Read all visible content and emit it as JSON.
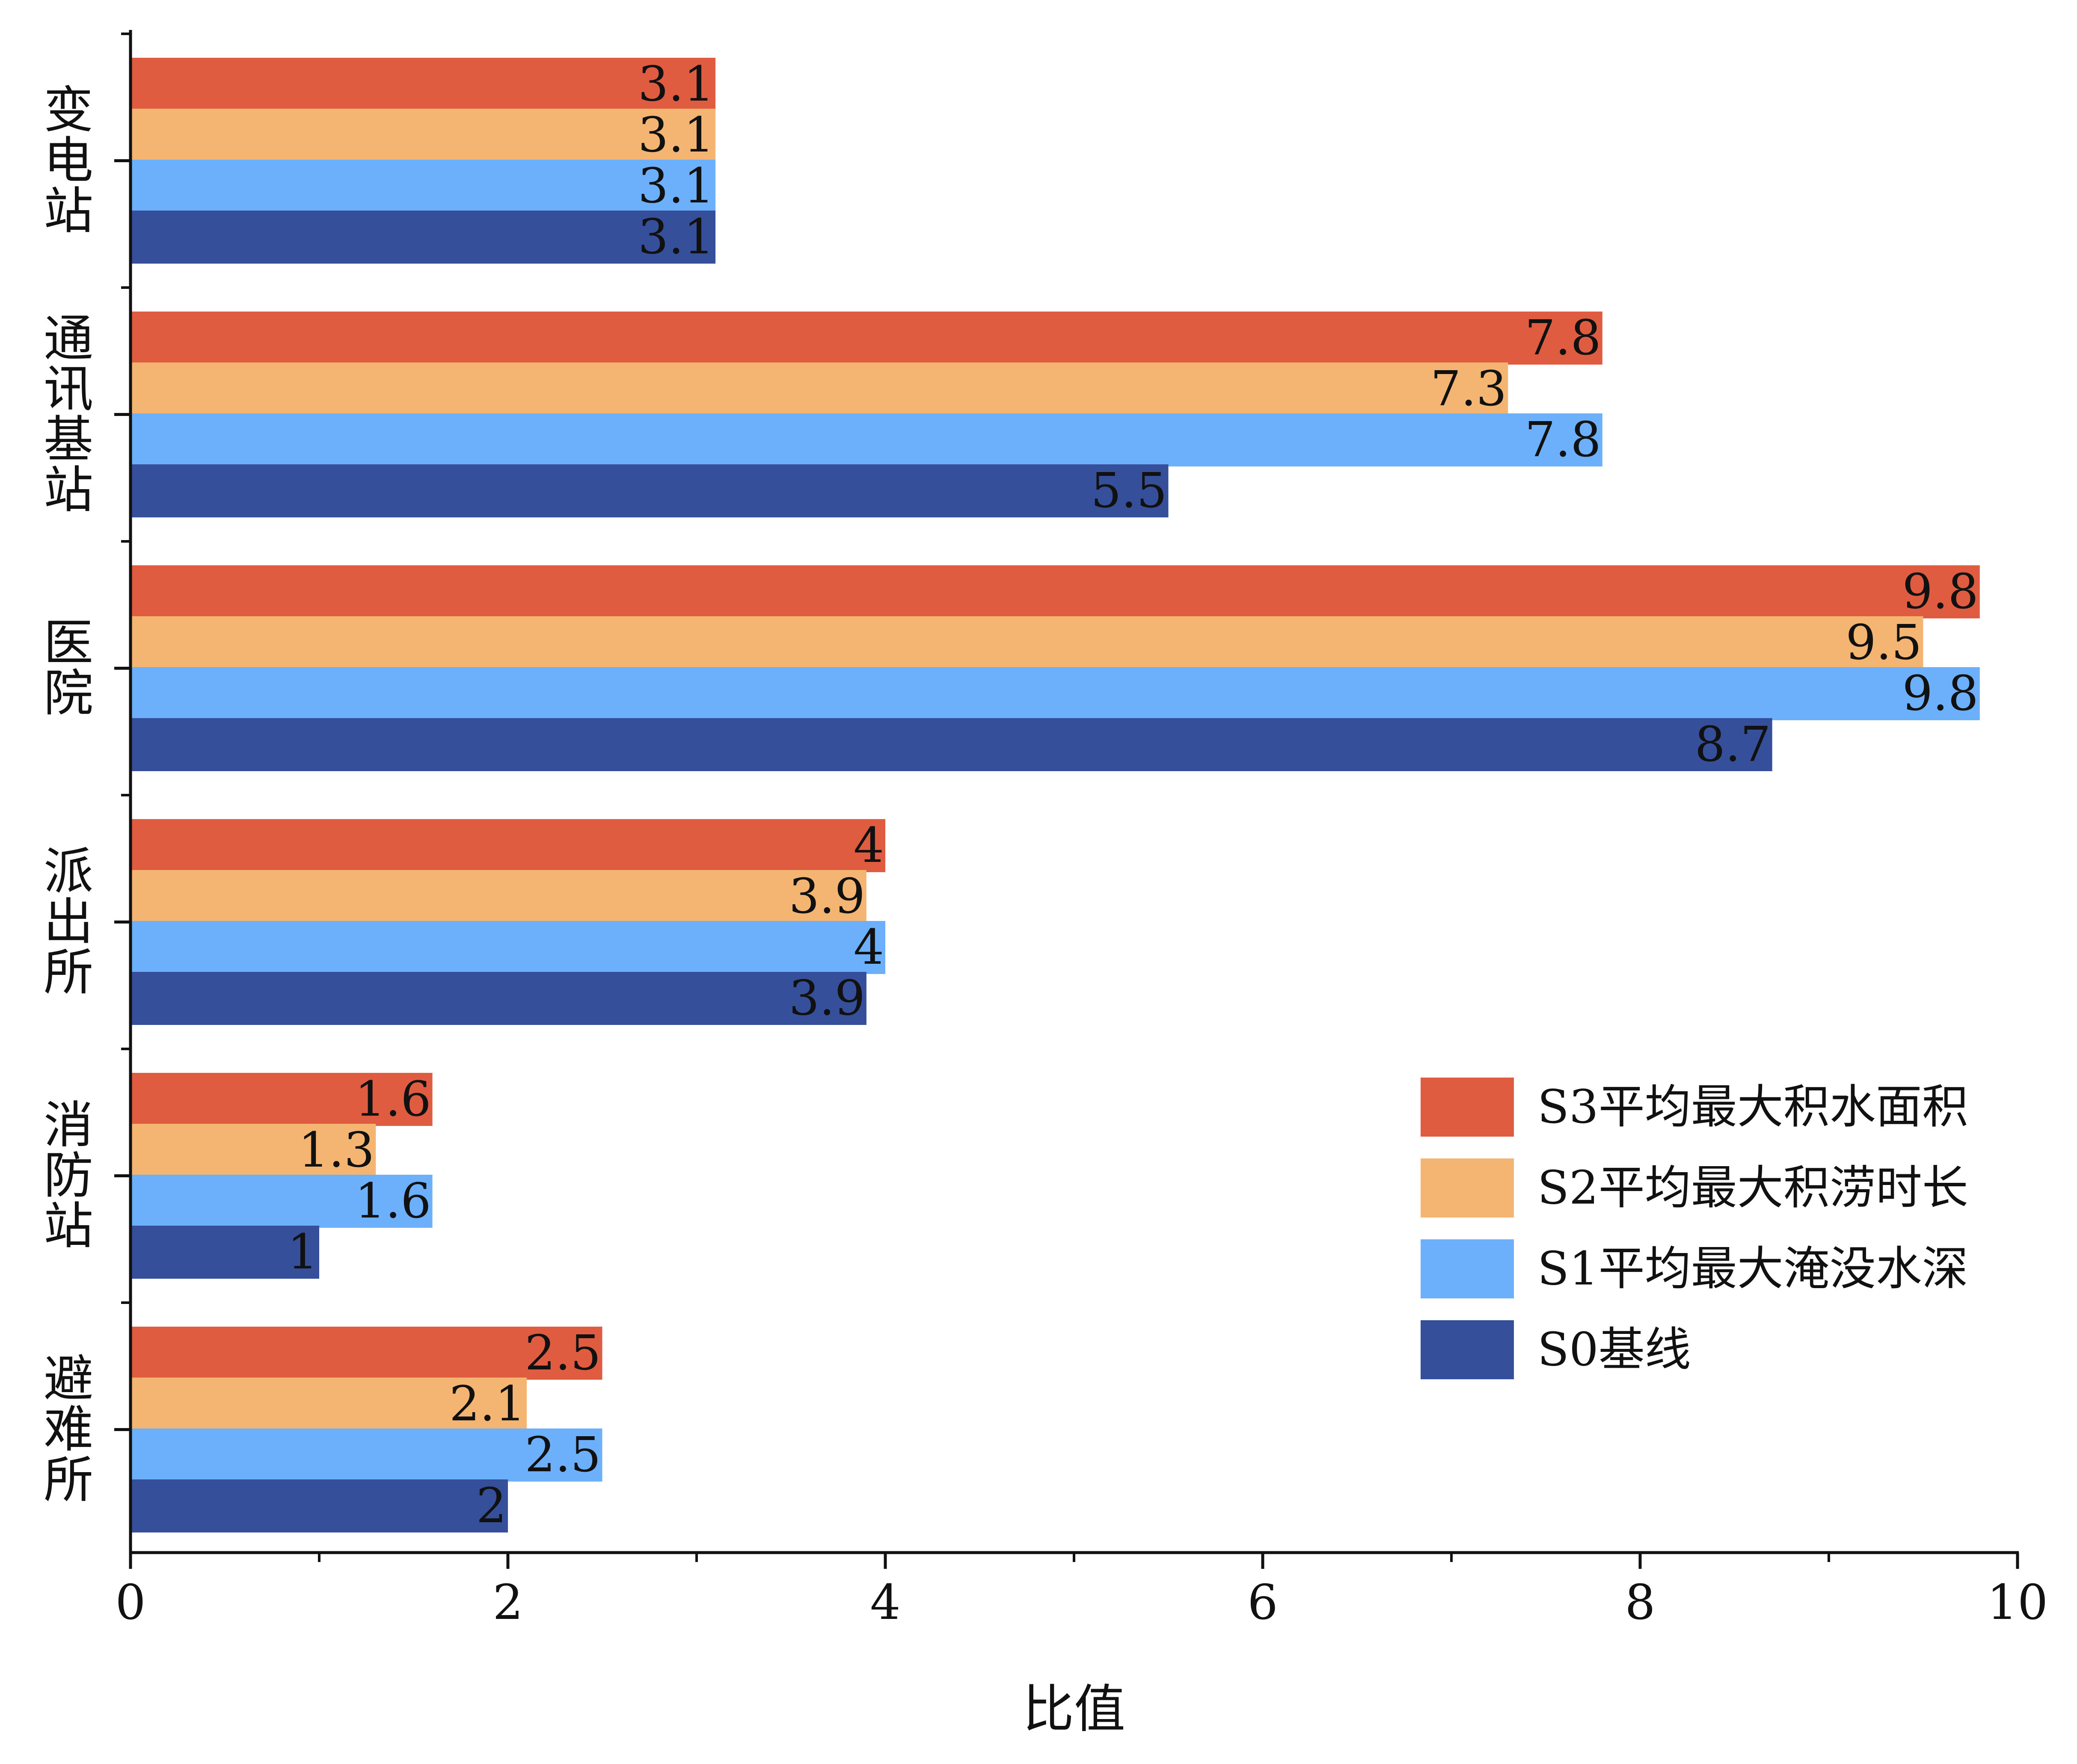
{
  "chart_data": {
    "type": "bar",
    "orientation": "horizontal",
    "categories": [
      "变电站",
      "通讯基站",
      "医院",
      "派出所",
      "消防站",
      "避难所"
    ],
    "series": [
      {
        "name": "S3平均最大积水面积",
        "color": "#E05C40",
        "values": [
          3.1,
          7.8,
          9.8,
          4,
          1.6,
          2.5
        ]
      },
      {
        "name": "S2平均最大积涝时长",
        "color": "#F5B572",
        "values": [
          3.1,
          7.3,
          9.5,
          3.9,
          1.3,
          2.1
        ]
      },
      {
        "name": "S1平均最大淹没水深",
        "color": "#6CB0FC",
        "values": [
          3.1,
          7.8,
          9.8,
          4,
          1.6,
          2.5
        ]
      },
      {
        "name": "S0基线",
        "color": "#364F9A",
        "values": [
          3.1,
          5.5,
          8.7,
          3.9,
          1,
          2
        ]
      }
    ],
    "data_labels": [
      [
        "3.1",
        "7.8",
        "9.8",
        "4",
        "1.6",
        "2.5"
      ],
      [
        "3.1",
        "7.3",
        "9.5",
        "3.9",
        "1.3",
        "2.1"
      ],
      [
        "3.1",
        "7.8",
        "9.8",
        "4",
        "1.6",
        "2.5"
      ],
      [
        "3.1",
        "5.5",
        "8.7",
        "3.9",
        "1",
        "2"
      ]
    ],
    "xlabel": "比值",
    "ylabel": "",
    "xlim": [
      0,
      10
    ],
    "xticks": [
      0,
      2,
      4,
      6,
      8,
      10
    ],
    "xtick_labels": [
      "0",
      "2",
      "4",
      "6",
      "8",
      "10"
    ],
    "grid": false,
    "legend_position": "right"
  }
}
